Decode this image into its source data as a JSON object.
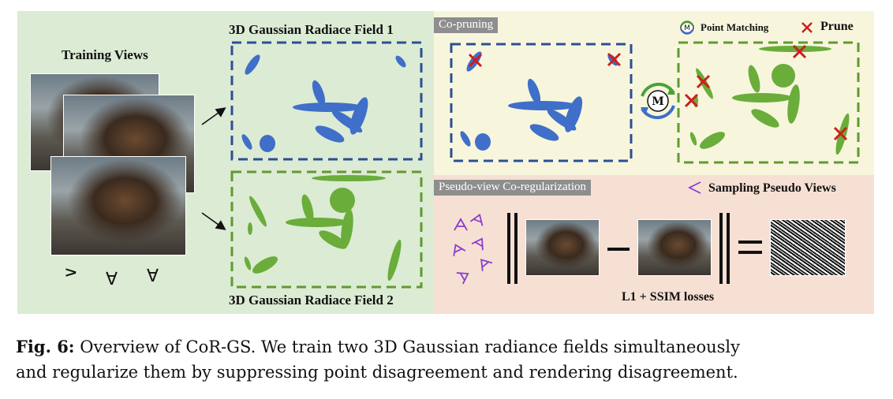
{
  "training_views_title": "Training Views",
  "field1_title": "3D Gaussian Radiace Field 1",
  "field2_title": "3D Gaussian Radiace Field 2",
  "co_pruning_label": "Co-pruning",
  "point_matching_label": "Point Matching",
  "prune_label": "Prune",
  "match_symbol": "M",
  "pseudo_view_label": "Pseudo-view Co-regularization",
  "sampling_label": "Sampling Pseudo Views",
  "losses_label": "L1 + SSIM losses",
  "caption": {
    "figure_label": "Fig. 6:",
    "line1": "Overview of CoR-GS. We train two 3D Gaussian radiance fields simultaneously",
    "line2": "and regularize them by suppressing point disagreement and rendering disagreement."
  },
  "colors": {
    "field1_blue": "#3f6fc8",
    "field2_green": "#6aad3a",
    "prune_red": "#cc1f1f",
    "pseudo_purple": "#8a3fd0"
  },
  "icons": [
    "camera-eye-icon",
    "prune-x-icon",
    "point-matching-icon",
    "pseudo-view-icon"
  ]
}
